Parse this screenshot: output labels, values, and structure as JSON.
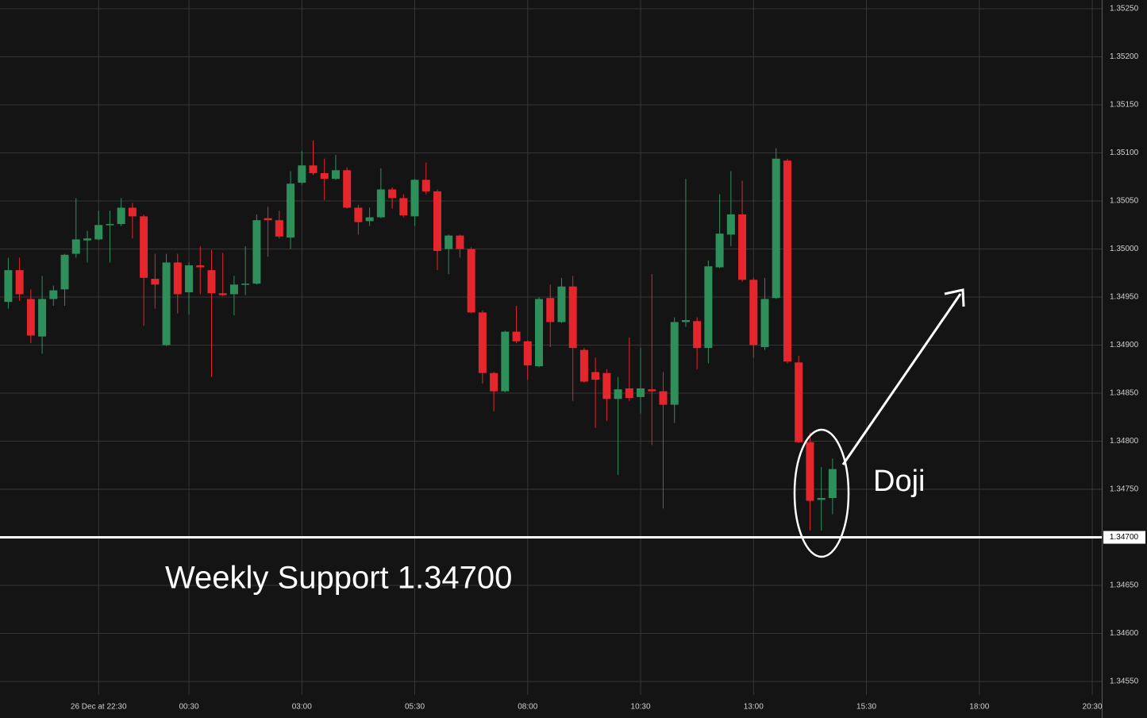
{
  "chart_data": {
    "type": "candlestick",
    "x": [
      20.5,
      20.75,
      21,
      21.25,
      21.5,
      21.75,
      22,
      22.25,
      22.5,
      22.75,
      23,
      23.25,
      23.5,
      23.75,
      24,
      24.25,
      24.5,
      24.75,
      25,
      25.25,
      25.5,
      25.75,
      26,
      26.25,
      26.5,
      26.75,
      27,
      27.25,
      27.5,
      27.75,
      28,
      28.25,
      28.5,
      28.75,
      29,
      29.25,
      29.5,
      29.75,
      30,
      30.25,
      30.5,
      30.75,
      31,
      31.25,
      31.5,
      31.75,
      32,
      32.25,
      32.5,
      32.75,
      33,
      33.25,
      33.5,
      33.75,
      34,
      34.25,
      34.5,
      34.75,
      35,
      35.25,
      35.5,
      35.75,
      36,
      36.25,
      36.5,
      36.75,
      37,
      37.25,
      37.5,
      37.75,
      38,
      38.25,
      38.5,
      38.75
    ],
    "open": [
      1.34945,
      1.34978,
      1.34948,
      1.34909,
      1.34948,
      1.34958,
      1.34995,
      1.35009,
      1.3501,
      1.35025,
      1.35026,
      1.35043,
      1.35034,
      1.34969,
      1.349,
      1.34986,
      1.34955,
      1.34983,
      1.34978,
      1.34954,
      1.34953,
      1.34963,
      1.34964,
      1.35032,
      1.3503,
      1.35012,
      1.35069,
      1.35087,
      1.35079,
      1.35073,
      1.35082,
      1.35043,
      1.35029,
      1.35033,
      1.35062,
      1.35053,
      1.35034,
      1.35072,
      1.3506,
      1.35,
      1.35014,
      1.35,
      1.34934,
      1.34871,
      1.34852,
      1.34914,
      1.34904,
      1.34878,
      1.34949,
      1.34924,
      1.34961,
      1.34895,
      1.34872,
      1.34871,
      1.34844,
      1.34855,
      1.34846,
      1.34854,
      1.34852,
      1.34838,
      1.34924,
      1.34925,
      1.34897,
      1.34981,
      1.35015,
      1.35036,
      1.34968,
      1.34898,
      1.34949,
      1.35092,
      1.34882,
      1.34799,
      1.34739,
      1.34741
    ],
    "high": [
      1.34991,
      1.34991,
      1.34958,
      1.34972,
      1.34962,
      1.34995,
      1.35053,
      1.35019,
      1.3504,
      1.3504,
      1.35053,
      1.35048,
      1.35036,
      1.34995,
      1.34995,
      1.34995,
      1.34986,
      1.35003,
      1.34999,
      1.34996,
      1.34972,
      1.35003,
      1.35036,
      1.35044,
      1.3504,
      1.35081,
      1.35102,
      1.35113,
      1.35094,
      1.35098,
      1.35085,
      1.35046,
      1.35043,
      1.35084,
      1.35064,
      1.35057,
      1.35073,
      1.3509,
      1.35062,
      1.35015,
      1.35015,
      1.35002,
      1.34936,
      1.34872,
      1.34915,
      1.34941,
      1.34905,
      1.3495,
      1.34963,
      1.3497,
      1.34972,
      1.34897,
      1.34887,
      1.34875,
      1.34867,
      1.34908,
      1.34897,
      1.34974,
      1.34872,
      1.34929,
      1.35073,
      1.34929,
      1.34988,
      1.35057,
      1.35081,
      1.35071,
      1.3497,
      1.3497,
      1.35105,
      1.35094,
      1.34889,
      1.34809,
      1.34773,
      1.34782
    ],
    "low": [
      1.34938,
      1.34946,
      1.34902,
      1.34891,
      1.34941,
      1.34941,
      1.34991,
      1.34986,
      1.35009,
      1.34986,
      1.35024,
      1.35011,
      1.3492,
      1.34938,
      1.34899,
      1.34933,
      1.34932,
      1.34953,
      1.34867,
      1.34951,
      1.34931,
      1.34952,
      1.34963,
      1.34992,
      1.35011,
      1.35,
      1.35067,
      1.35077,
      1.35051,
      1.35072,
      1.35042,
      1.35015,
      1.35024,
      1.35032,
      1.35042,
      1.35033,
      1.35024,
      1.35057,
      1.34978,
      1.34974,
      1.34991,
      1.34933,
      1.3486,
      1.34831,
      1.34851,
      1.34902,
      1.34864,
      1.34877,
      1.34898,
      1.34923,
      1.34842,
      1.34861,
      1.34814,
      1.34821,
      1.34765,
      1.34842,
      1.34829,
      1.34796,
      1.3473,
      1.34819,
      1.34919,
      1.34875,
      1.34881,
      1.3498,
      1.35003,
      1.34966,
      1.34887,
      1.34895,
      1.34948,
      1.34881,
      1.34798,
      1.34707,
      1.34707,
      1.34724
    ],
    "close": [
      1.34978,
      1.34953,
      1.3491,
      1.34948,
      1.34957,
      1.34994,
      1.3501,
      1.35011,
      1.35025,
      1.35026,
      1.35043,
      1.35034,
      1.3497,
      1.34963,
      1.34986,
      1.34953,
      1.34983,
      1.34981,
      1.34954,
      1.34952,
      1.34963,
      1.34964,
      1.3503,
      1.3503,
      1.35013,
      1.35068,
      1.35087,
      1.35079,
      1.35073,
      1.35082,
      1.35043,
      1.35028,
      1.35033,
      1.35062,
      1.35053,
      1.35035,
      1.35072,
      1.3506,
      1.34998,
      1.35014,
      1.35,
      1.34934,
      1.34871,
      1.34852,
      1.34914,
      1.34904,
      1.34879,
      1.34948,
      1.34924,
      1.34961,
      1.34897,
      1.34862,
      1.34864,
      1.34844,
      1.34854,
      1.34845,
      1.34855,
      1.34852,
      1.34838,
      1.34924,
      1.34926,
      1.34897,
      1.34982,
      1.35016,
      1.35036,
      1.34968,
      1.349,
      1.34948,
      1.35094,
      1.34883,
      1.34799,
      1.34738,
      1.34741,
      1.34771
    ],
    "up_color": "#2f8f5b",
    "down_color": "#e5262c",
    "xlim": [
      20.317,
      44.71
    ],
    "xticks": [
      {
        "value": 22.5,
        "label": "26 Dec at 22:30"
      },
      {
        "value": 24.5,
        "label": "00:30"
      },
      {
        "value": 27,
        "label": "03:00"
      },
      {
        "value": 29.5,
        "label": "05:30"
      },
      {
        "value": 32,
        "label": "08:00"
      },
      {
        "value": 34.5,
        "label": "10:30"
      },
      {
        "value": 37,
        "label": "13:00"
      },
      {
        "value": 39.5,
        "label": "15:30"
      },
      {
        "value": 42,
        "label": "18:00"
      },
      {
        "value": 44.5,
        "label": "20:30"
      }
    ],
    "ylim": [
      1.34536,
      1.352591
    ],
    "yticks": [
      {
        "value": 1.3455,
        "label": "1.34550"
      },
      {
        "value": 1.346,
        "label": "1.34600"
      },
      {
        "value": 1.3465,
        "label": "1.34650"
      },
      {
        "value": 1.347,
        "label": "1.34700"
      },
      {
        "value": 1.3475,
        "label": "1.34750"
      },
      {
        "value": 1.348,
        "label": "1.34800"
      },
      {
        "value": 1.3485,
        "label": "1.34850"
      },
      {
        "value": 1.349,
        "label": "1.34900"
      },
      {
        "value": 1.3495,
        "label": "1.34950"
      },
      {
        "value": 1.35,
        "label": "1.35000"
      },
      {
        "value": 1.3505,
        "label": "1.35050"
      },
      {
        "value": 1.351,
        "label": "1.35100"
      },
      {
        "value": 1.3515,
        "label": "1.35150"
      },
      {
        "value": 1.352,
        "label": "1.35200"
      },
      {
        "value": 1.3525,
        "label": "1.35250"
      }
    ],
    "grid": true,
    "hline": {
      "value": 1.347,
      "label": "1.34700",
      "text": "Weekly Support 1.34700"
    },
    "annotation": "Doji"
  }
}
